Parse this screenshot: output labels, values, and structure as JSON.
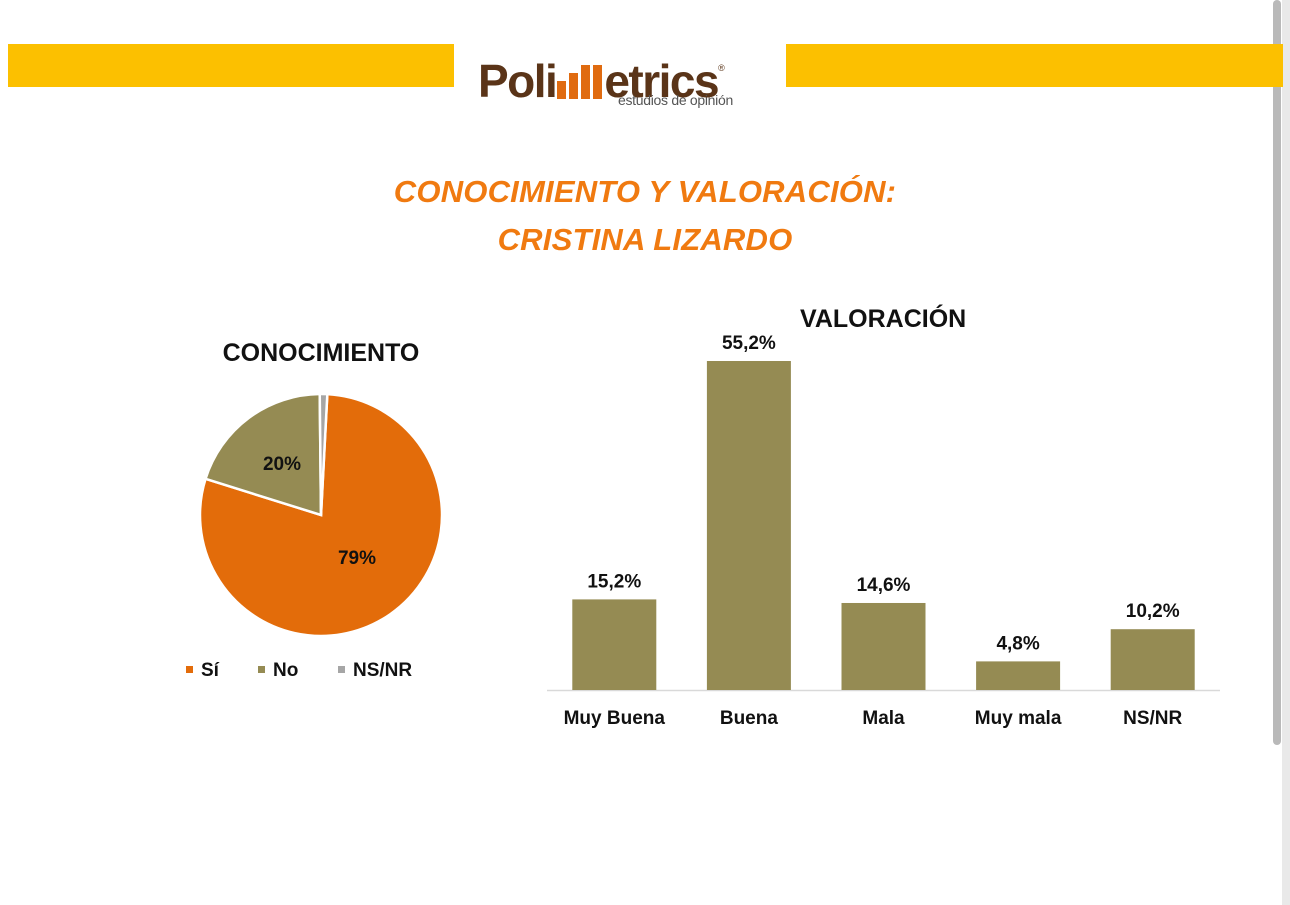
{
  "header": {
    "logo_text_left": "Poli",
    "logo_text_right": "etrics",
    "logo_registered": "®",
    "logo_tagline": "estudios de opinión",
    "band_color": "#fcc000"
  },
  "title": {
    "line1": "CONOCIMIENTO Y VALORACIÓN:",
    "line2": "CRISTINA LIZARDO"
  },
  "chart_data": [
    {
      "type": "pie",
      "title": "CONOCIMIENTO",
      "slices": [
        {
          "name": "Sí",
          "value": 79,
          "label": "79%",
          "color": "#e36c0a"
        },
        {
          "name": "No",
          "value": 20,
          "label": "20%",
          "color": "#958b53"
        },
        {
          "name": "NS/NR",
          "value": 1,
          "label": "",
          "color": "#a6a6a6"
        }
      ],
      "legend_position": "bottom"
    },
    {
      "type": "bar",
      "title": "VALORACIÓN",
      "categories": [
        "Muy Buena",
        "Buena",
        "Mala",
        "Muy mala",
        "NS/NR"
      ],
      "values": [
        15.2,
        55.2,
        14.6,
        4.8,
        10.2
      ],
      "labels": [
        "15,2%",
        "55,2%",
        "14,6%",
        "4,8%",
        "10,2%"
      ],
      "color": "#958b53",
      "ylim": [
        0,
        56
      ],
      "grid": false
    }
  ]
}
